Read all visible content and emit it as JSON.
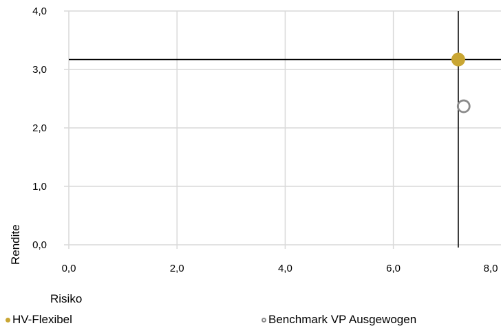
{
  "chart_data": {
    "type": "scatter",
    "title": "",
    "xlabel": "Risiko",
    "ylabel": "Rendite",
    "xlim": [
      0,
      8
    ],
    "ylim": [
      0,
      4
    ],
    "x_ticks": [
      "0,0",
      "2,0",
      "4,0",
      "6,0",
      "8,0"
    ],
    "y_ticks": [
      "0,0",
      "1,0",
      "2,0",
      "3,0",
      "4,0"
    ],
    "grid": true,
    "legend_position": "bottom",
    "crosshair": {
      "x": 7.2,
      "y": 3.17
    },
    "series": [
      {
        "name": "HV-Flexibel",
        "x": 7.2,
        "y": 3.17,
        "color": "#c9a633",
        "style": "filled"
      },
      {
        "name": "Benchmark VP Ausgewogen",
        "x": 7.3,
        "y": 2.37,
        "color": "#8a8a8a",
        "style": "hollow"
      }
    ]
  }
}
